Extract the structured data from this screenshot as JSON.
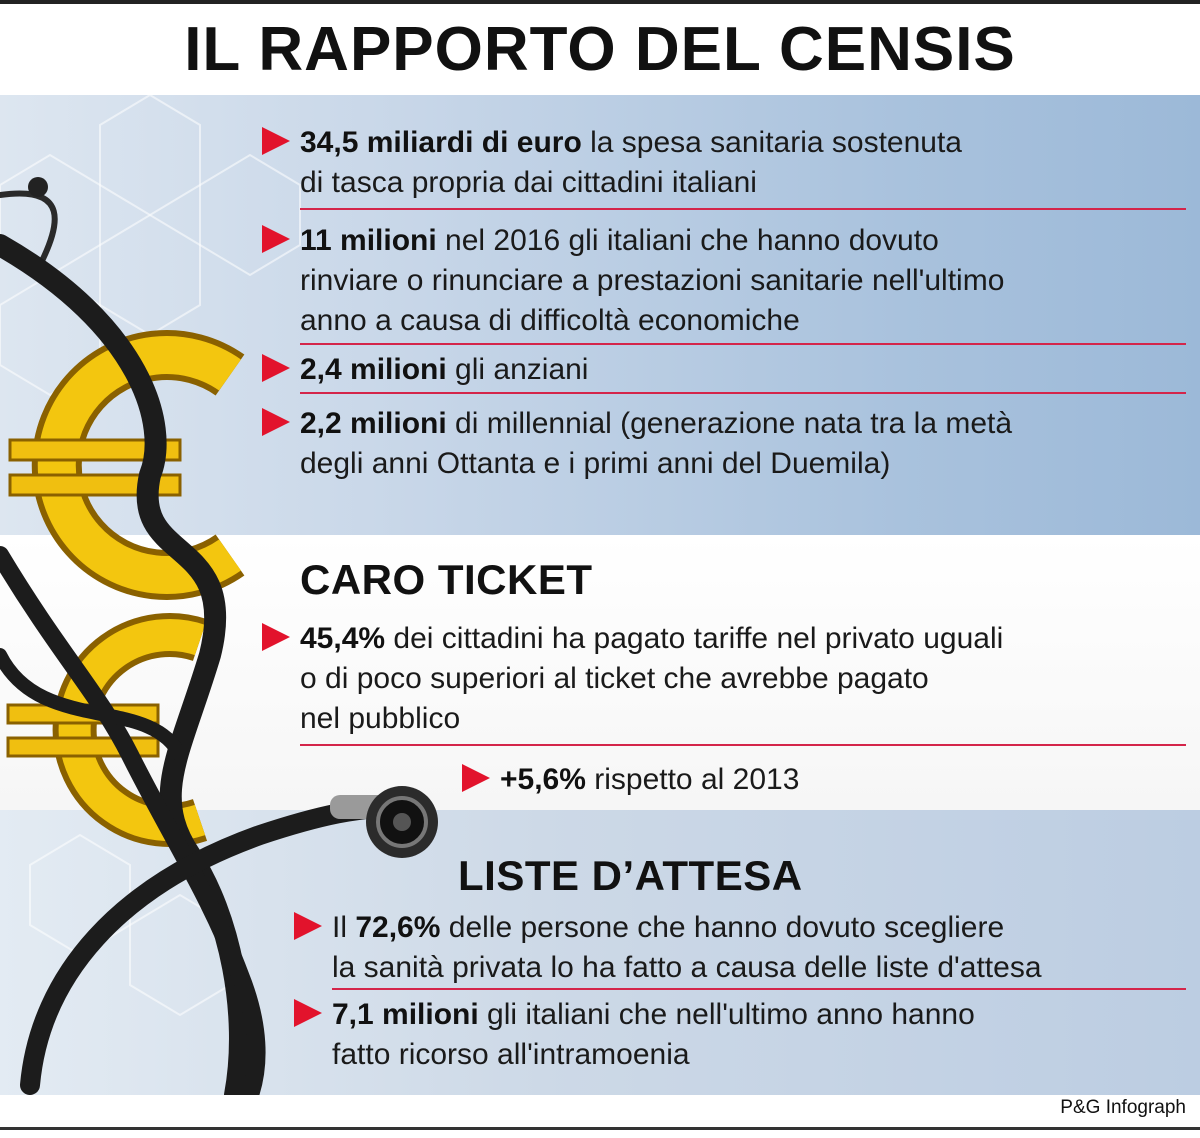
{
  "title": "IL RAPPORTO DEL CENSIS",
  "stats": [
    {
      "bold": "34,5 miliardi di euro",
      "text": " la spesa sanitaria sostenuta",
      "text2": "di tasca propria dai cittadini italiani"
    },
    {
      "bold": "11 milioni",
      "text": " nel 2016 gli italiani che hanno dovuto",
      "text2": "rinviare o rinunciare a prestazioni sanitarie nell'ultimo",
      "text3": "anno a causa di difficoltà economiche"
    },
    {
      "bold": "2,4 milioni",
      "text": " gli anziani"
    },
    {
      "bold": "2,2 milioni",
      "text": " di millennial (generazione nata tra la metà",
      "text2": "degli anni Ottanta e i primi anni del Duemila)"
    }
  ],
  "caro_ticket": {
    "heading": "CARO TICKET",
    "item": {
      "bold": "45,4%",
      "text": " dei cittadini ha pagato tariffe nel privato uguali",
      "text2": "o di poco superiori al ticket che avrebbe pagato",
      "text3": "nel pubblico"
    },
    "sub": {
      "bold": "+5,6%",
      "text": " rispetto al 2013"
    }
  },
  "liste_attesa": {
    "heading": "LISTE D’ATTESA",
    "items": [
      {
        "pre": "Il ",
        "bold": "72,6%",
        "text": " delle persone che hanno dovuto scegliere",
        "text2": "la sanità privata lo ha fatto a causa delle liste d'attesa"
      },
      {
        "bold": "7,1 milioni",
        "text": " gli italiani che nell'ultimo anno hanno",
        "text2": "fatto ricorso all'intramoenia"
      }
    ]
  },
  "credit": "P&G Infograph",
  "illustration": {
    "euro_symbol": "€",
    "euro_color": "#e8b400",
    "tube_color": "#1c1c1c"
  },
  "colors": {
    "accent": "#e2132c",
    "rule": "#d4254a"
  }
}
